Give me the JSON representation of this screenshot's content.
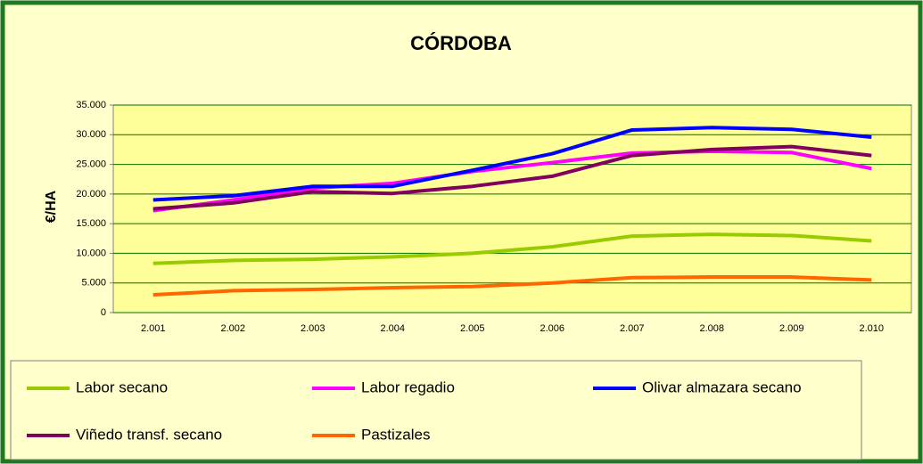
{
  "chart_data": {
    "type": "line",
    "title": "CÓRDOBA",
    "y_label": "€/HA",
    "categories": [
      "2.001",
      "2.002",
      "2.003",
      "2.004",
      "2.005",
      "2.006",
      "2.007",
      "2.008",
      "2.009",
      "2.010"
    ],
    "series": [
      {
        "name": "Labor secano",
        "color": "#99cc00",
        "values": [
          8300,
          8800,
          9000,
          9400,
          10000,
          11100,
          12900,
          13200,
          13000,
          12100
        ]
      },
      {
        "name": "Labor regadio",
        "color": "#ff00ff",
        "values": [
          17200,
          19000,
          21000,
          21800,
          23800,
          25300,
          26900,
          27200,
          27000,
          24300
        ]
      },
      {
        "name": "Olivar almazara secano",
        "color": "#0000ff",
        "values": [
          19000,
          19700,
          21300,
          21300,
          24000,
          26800,
          30800,
          31200,
          30900,
          29600
        ]
      },
      {
        "name": "Viñedo transf. secano",
        "color": "#800060",
        "values": [
          17500,
          18500,
          20400,
          20100,
          21300,
          23000,
          26500,
          27500,
          28000,
          26500
        ]
      },
      {
        "name": "Pastizales",
        "color": "#ff6600",
        "values": [
          3000,
          3700,
          3900,
          4200,
          4400,
          5000,
          5900,
          6000,
          6000,
          5500
        ]
      }
    ],
    "ylim": [
      0,
      35000
    ],
    "yticks": [
      0,
      {
        "value": 5000,
        "label": "5.000"
      },
      {
        "value": 10000,
        "label": "10.000"
      },
      {
        "value": 15000,
        "label": "15.000"
      },
      {
        "value": 20000,
        "label": "20.000"
      },
      {
        "value": 25000,
        "label": "25.000"
      },
      {
        "value": 30000,
        "label": "30.000"
      },
      {
        "value": 35000,
        "label": "35.000"
      }
    ],
    "grid": true
  }
}
